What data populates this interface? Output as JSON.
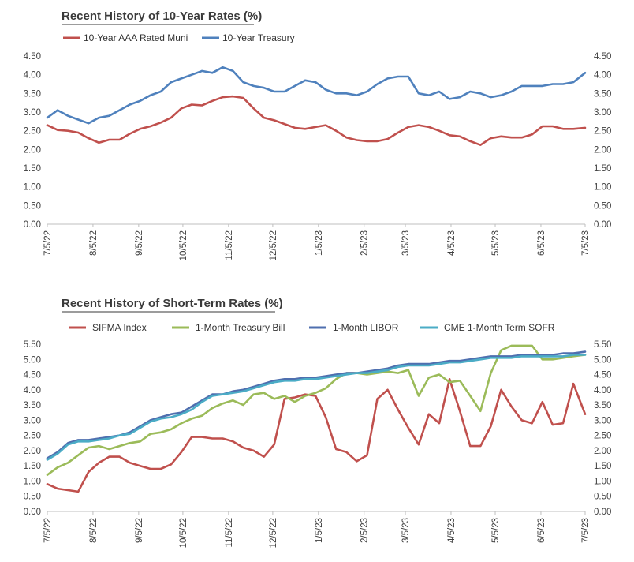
{
  "chart_data": [
    {
      "type": "line",
      "title": "Recent History of 10-Year Rates (%)",
      "xlabel": "",
      "ylabel": "",
      "x_ticks": [
        "7/5/22",
        "8/5/22",
        "9/5/22",
        "10/5/22",
        "11/5/22",
        "12/5/22",
        "1/5/23",
        "2/5/23",
        "3/5/23",
        "4/5/23",
        "5/5/23",
        "6/5/23",
        "7/5/23"
      ],
      "y_ticks": [
        "0.00",
        "0.50",
        "1.00",
        "1.50",
        "2.00",
        "2.50",
        "3.00",
        "3.50",
        "4.00",
        "4.50"
      ],
      "ylim": [
        0,
        4.5
      ],
      "secondary_y_axis": true,
      "grid": false,
      "legend_position": "top",
      "series": [
        {
          "name": "10-Year AAA Rated Muni",
          "color": "#c0504d",
          "x": [
            "7/5/22",
            "7/12/22",
            "7/19/22",
            "7/26/22",
            "8/2/22",
            "8/9/22",
            "8/16/22",
            "8/23/22",
            "8/30/22",
            "9/6/22",
            "9/13/22",
            "9/20/22",
            "9/27/22",
            "10/4/22",
            "10/11/22",
            "10/18/22",
            "10/25/22",
            "11/1/22",
            "11/8/22",
            "11/15/22",
            "11/22/22",
            "11/29/22",
            "12/6/22",
            "12/13/22",
            "12/20/22",
            "12/27/22",
            "1/3/23",
            "1/10/23",
            "1/17/23",
            "1/24/23",
            "1/31/23",
            "2/7/23",
            "2/14/23",
            "2/21/23",
            "2/28/23",
            "3/7/23",
            "3/14/23",
            "3/21/23",
            "3/28/23",
            "4/4/23",
            "4/11/23",
            "4/18/23",
            "4/25/23",
            "5/2/23",
            "5/9/23",
            "5/16/23",
            "5/23/23",
            "5/30/23",
            "6/6/23",
            "6/13/23",
            "6/20/23",
            "6/27/23",
            "7/5/23"
          ],
          "values": [
            2.65,
            2.52,
            2.5,
            2.45,
            2.3,
            2.18,
            2.26,
            2.26,
            2.42,
            2.55,
            2.62,
            2.72,
            2.85,
            3.1,
            3.2,
            3.18,
            3.3,
            3.4,
            3.42,
            3.38,
            3.1,
            2.85,
            2.78,
            2.68,
            2.58,
            2.55,
            2.6,
            2.65,
            2.5,
            2.32,
            2.25,
            2.22,
            2.22,
            2.28,
            2.45,
            2.6,
            2.65,
            2.6,
            2.5,
            2.38,
            2.35,
            2.22,
            2.12,
            2.3,
            2.35,
            2.32,
            2.32,
            2.4,
            2.62,
            2.62,
            2.55,
            2.55,
            2.58
          ]
        },
        {
          "name": "10-Year Treasury",
          "color": "#4f81bd",
          "x": [
            "7/5/22",
            "7/12/22",
            "7/19/22",
            "7/26/22",
            "8/2/22",
            "8/9/22",
            "8/16/22",
            "8/23/22",
            "8/30/22",
            "9/6/22",
            "9/13/22",
            "9/20/22",
            "9/27/22",
            "10/4/22",
            "10/11/22",
            "10/18/22",
            "10/25/22",
            "11/1/22",
            "11/8/22",
            "11/15/22",
            "11/22/22",
            "11/29/22",
            "12/6/22",
            "12/13/22",
            "12/20/22",
            "12/27/22",
            "1/3/23",
            "1/10/23",
            "1/17/23",
            "1/24/23",
            "1/31/23",
            "2/7/23",
            "2/14/23",
            "2/21/23",
            "2/28/23",
            "3/7/23",
            "3/14/23",
            "3/21/23",
            "3/28/23",
            "4/4/23",
            "4/11/23",
            "4/18/23",
            "4/25/23",
            "5/2/23",
            "5/9/23",
            "5/16/23",
            "5/23/23",
            "5/30/23",
            "6/6/23",
            "6/13/23",
            "6/20/23",
            "6/27/23",
            "7/5/23"
          ],
          "values": [
            2.85,
            3.05,
            2.9,
            2.8,
            2.7,
            2.85,
            2.9,
            3.05,
            3.2,
            3.3,
            3.45,
            3.55,
            3.8,
            3.9,
            4.0,
            4.1,
            4.05,
            4.2,
            4.1,
            3.8,
            3.7,
            3.65,
            3.55,
            3.55,
            3.7,
            3.85,
            3.8,
            3.6,
            3.5,
            3.5,
            3.45,
            3.55,
            3.75,
            3.9,
            3.95,
            3.95,
            3.5,
            3.45,
            3.55,
            3.35,
            3.4,
            3.55,
            3.5,
            3.4,
            3.45,
            3.55,
            3.7,
            3.7,
            3.7,
            3.75,
            3.75,
            3.8,
            4.05
          ]
        }
      ]
    },
    {
      "type": "line",
      "title": "Recent History of Short-Term Rates (%)",
      "xlabel": "",
      "ylabel": "",
      "x_ticks": [
        "7/5/22",
        "8/5/22",
        "9/5/22",
        "10/5/22",
        "11/5/22",
        "12/5/22",
        "1/5/23",
        "2/5/23",
        "3/5/23",
        "4/5/23",
        "5/5/23",
        "6/5/23",
        "7/5/23"
      ],
      "y_ticks": [
        "0.00",
        "0.50",
        "1.00",
        "1.50",
        "2.00",
        "2.50",
        "3.00",
        "3.50",
        "4.00",
        "4.50",
        "5.00",
        "5.50"
      ],
      "ylim": [
        0,
        5.5
      ],
      "secondary_y_axis": true,
      "grid": false,
      "legend_position": "top",
      "series": [
        {
          "name": "SIFMA Index",
          "color": "#c0504d",
          "x": [
            "7/5/22",
            "7/12/22",
            "7/19/22",
            "7/26/22",
            "8/2/22",
            "8/9/22",
            "8/16/22",
            "8/23/22",
            "8/30/22",
            "9/6/22",
            "9/13/22",
            "9/20/22",
            "9/27/22",
            "10/4/22",
            "10/11/22",
            "10/18/22",
            "10/25/22",
            "11/1/22",
            "11/8/22",
            "11/15/22",
            "11/22/22",
            "11/29/22",
            "12/6/22",
            "12/13/22",
            "12/20/22",
            "12/27/22",
            "1/3/23",
            "1/10/23",
            "1/17/23",
            "1/24/23",
            "1/31/23",
            "2/7/23",
            "2/14/23",
            "2/21/23",
            "2/28/23",
            "3/7/23",
            "3/14/23",
            "3/21/23",
            "3/28/23",
            "4/4/23",
            "4/11/23",
            "4/18/23",
            "4/25/23",
            "5/2/23",
            "5/9/23",
            "5/16/23",
            "5/23/23",
            "5/30/23",
            "6/6/23",
            "6/13/23",
            "6/20/23",
            "6/27/23",
            "7/5/23"
          ],
          "values": [
            0.9,
            0.75,
            0.7,
            0.65,
            1.3,
            1.6,
            1.8,
            1.8,
            1.6,
            1.5,
            1.4,
            1.4,
            1.55,
            1.95,
            2.45,
            2.45,
            2.4,
            2.4,
            2.3,
            2.1,
            2.0,
            1.8,
            2.2,
            3.7,
            3.75,
            3.85,
            3.8,
            3.1,
            2.05,
            1.95,
            1.65,
            1.85,
            3.7,
            4.0,
            3.35,
            2.75,
            2.2,
            3.2,
            2.9,
            4.35,
            3.3,
            2.15,
            2.15,
            2.8,
            4.0,
            3.45,
            3.0,
            2.9,
            3.6,
            2.85,
            2.9,
            4.2,
            3.2
          ]
        },
        {
          "name": "1-Month Treasury Bill",
          "color": "#9bbb59",
          "x": [
            "7/5/22",
            "7/12/22",
            "7/19/22",
            "7/26/22",
            "8/2/22",
            "8/9/22",
            "8/16/22",
            "8/23/22",
            "8/30/22",
            "9/6/22",
            "9/13/22",
            "9/20/22",
            "9/27/22",
            "10/4/22",
            "10/11/22",
            "10/18/22",
            "10/25/22",
            "11/1/22",
            "11/8/22",
            "11/15/22",
            "11/22/22",
            "11/29/22",
            "12/6/22",
            "12/13/22",
            "12/20/22",
            "12/27/22",
            "1/3/23",
            "1/10/23",
            "1/17/23",
            "1/24/23",
            "1/31/23",
            "2/7/23",
            "2/14/23",
            "2/21/23",
            "2/28/23",
            "3/7/23",
            "3/14/23",
            "3/21/23",
            "3/28/23",
            "4/4/23",
            "4/11/23",
            "4/18/23",
            "4/25/23",
            "5/2/23",
            "5/9/23",
            "5/16/23",
            "5/23/23",
            "5/30/23",
            "6/6/23",
            "6/13/23",
            "6/20/23",
            "6/27/23",
            "7/5/23"
          ],
          "values": [
            1.2,
            1.45,
            1.6,
            1.85,
            2.1,
            2.15,
            2.05,
            2.15,
            2.25,
            2.3,
            2.55,
            2.6,
            2.7,
            2.9,
            3.05,
            3.15,
            3.4,
            3.55,
            3.65,
            3.5,
            3.85,
            3.9,
            3.7,
            3.8,
            3.6,
            3.8,
            3.9,
            4.05,
            4.35,
            4.55,
            4.55,
            4.5,
            4.55,
            4.6,
            4.55,
            4.65,
            3.8,
            4.4,
            4.5,
            4.25,
            4.3,
            3.8,
            3.3,
            4.55,
            5.3,
            5.45,
            5.45,
            5.45,
            5.0,
            5.0,
            5.05,
            5.1,
            5.15
          ]
        },
        {
          "name": "1-Month LIBOR",
          "color": "#4f6faf",
          "x": [
            "7/5/22",
            "7/12/22",
            "7/19/22",
            "7/26/22",
            "8/2/22",
            "8/9/22",
            "8/16/22",
            "8/23/22",
            "8/30/22",
            "9/6/22",
            "9/13/22",
            "9/20/22",
            "9/27/22",
            "10/4/22",
            "10/11/22",
            "10/18/22",
            "10/25/22",
            "11/1/22",
            "11/8/22",
            "11/15/22",
            "11/22/22",
            "11/29/22",
            "12/6/22",
            "12/13/22",
            "12/20/22",
            "12/27/22",
            "1/3/23",
            "1/10/23",
            "1/17/23",
            "1/24/23",
            "1/31/23",
            "2/7/23",
            "2/14/23",
            "2/21/23",
            "2/28/23",
            "3/7/23",
            "3/14/23",
            "3/21/23",
            "3/28/23",
            "4/4/23",
            "4/11/23",
            "4/18/23",
            "4/25/23",
            "5/2/23",
            "5/9/23",
            "5/16/23",
            "5/23/23",
            "5/30/23",
            "6/6/23",
            "6/13/23",
            "6/20/23",
            "6/27/23",
            "7/5/23"
          ],
          "values": [
            1.75,
            1.95,
            2.25,
            2.35,
            2.35,
            2.4,
            2.45,
            2.5,
            2.6,
            2.8,
            3.0,
            3.1,
            3.2,
            3.25,
            3.45,
            3.65,
            3.85,
            3.85,
            3.95,
            4.0,
            4.1,
            4.2,
            4.3,
            4.35,
            4.35,
            4.4,
            4.4,
            4.45,
            4.5,
            4.55,
            4.55,
            4.6,
            4.65,
            4.7,
            4.8,
            4.85,
            4.85,
            4.85,
            4.9,
            4.95,
            4.95,
            5.0,
            5.05,
            5.1,
            5.1,
            5.1,
            5.15,
            5.15,
            5.15,
            5.15,
            5.2,
            5.2,
            5.25
          ]
        },
        {
          "name": "CME 1-Month Term SOFR",
          "color": "#4bacc6",
          "x": [
            "7/5/22",
            "7/12/22",
            "7/19/22",
            "7/26/22",
            "8/2/22",
            "8/9/22",
            "8/16/22",
            "8/23/22",
            "8/30/22",
            "9/6/22",
            "9/13/22",
            "9/20/22",
            "9/27/22",
            "10/4/22",
            "10/11/22",
            "10/18/22",
            "10/25/22",
            "11/1/22",
            "11/8/22",
            "11/15/22",
            "11/22/22",
            "11/29/22",
            "12/6/22",
            "12/13/22",
            "12/20/22",
            "12/27/22",
            "1/3/23",
            "1/10/23",
            "1/17/23",
            "1/24/23",
            "1/31/23",
            "2/7/23",
            "2/14/23",
            "2/21/23",
            "2/28/23",
            "3/7/23",
            "3/14/23",
            "3/21/23",
            "3/28/23",
            "4/4/23",
            "4/11/23",
            "4/18/23",
            "4/25/23",
            "5/2/23",
            "5/9/23",
            "5/16/23",
            "5/23/23",
            "5/30/23",
            "6/6/23",
            "6/13/23",
            "6/20/23",
            "6/27/23",
            "7/5/23"
          ],
          "values": [
            1.7,
            1.9,
            2.2,
            2.3,
            2.3,
            2.35,
            2.4,
            2.5,
            2.55,
            2.75,
            2.95,
            3.05,
            3.1,
            3.2,
            3.35,
            3.6,
            3.8,
            3.85,
            3.9,
            3.95,
            4.05,
            4.15,
            4.25,
            4.3,
            4.3,
            4.35,
            4.35,
            4.4,
            4.45,
            4.5,
            4.55,
            4.55,
            4.6,
            4.65,
            4.75,
            4.8,
            4.8,
            4.8,
            4.85,
            4.9,
            4.9,
            4.95,
            5.0,
            5.05,
            5.05,
            5.05,
            5.1,
            5.1,
            5.1,
            5.1,
            5.1,
            5.15,
            5.15
          ]
        }
      ]
    }
  ]
}
